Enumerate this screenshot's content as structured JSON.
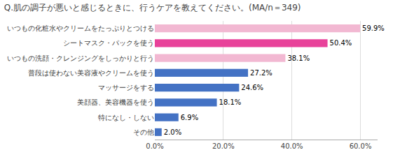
{
  "chart_data": {
    "type": "bar",
    "orientation": "horizontal",
    "title": "Q.肌の調子が悪いと感じるときに、行うケアを教えてください。(MA/n＝349)",
    "categories": [
      "いつもの化粧水やクリームをたっぷりとつける",
      "シートマスク・パックを使う",
      "いつもの洗顔・クレンジングをしっかりと行う",
      "普段は使わない美容液やクリームを使う",
      "マッサージをする",
      "美顔器、美容機器を使う",
      "特になし・しない",
      "その他"
    ],
    "values": [
      59.9,
      50.4,
      38.1,
      27.2,
      24.6,
      18.1,
      6.9,
      2.0
    ],
    "value_labels": [
      "59.9%",
      "50.4%",
      "38.1%",
      "27.2%",
      "24.6%",
      "18.1%",
      "6.9%",
      "2.0%"
    ],
    "data_labels": true,
    "colors": [
      "#f2b8d2",
      "#e8429a",
      "#f2b8d2",
      "#4472c4",
      "#4472c4",
      "#4472c4",
      "#4472c4",
      "#4472c4"
    ],
    "xlim": [
      0,
      65
    ],
    "xticks": [
      {
        "value": 0,
        "label": "0.0%"
      },
      {
        "value": 20,
        "label": "20.0%"
      },
      {
        "value": 40,
        "label": "40.0%"
      },
      {
        "value": 60,
        "label": "60.0%"
      }
    ],
    "grid": true
  }
}
